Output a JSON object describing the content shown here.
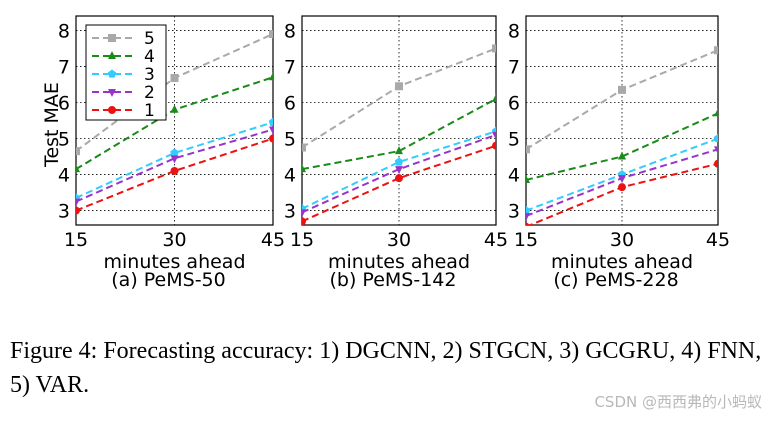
{
  "chart_data": [
    {
      "type": "line",
      "title": "(a) PeMS-50",
      "xlabel": "minutes ahead",
      "ylabel": "Test MAE",
      "x": [
        15,
        30,
        45
      ],
      "xticks": [
        "15",
        "30",
        "45"
      ],
      "yticks": [
        "3",
        "4",
        "5",
        "6",
        "7",
        "8"
      ],
      "ylim": [
        2.6,
        8.4
      ],
      "grid": true,
      "legend_position": "top-left",
      "series": [
        {
          "name": "5",
          "values": [
            4.65,
            6.68,
            7.9
          ]
        },
        {
          "name": "4",
          "values": [
            4.15,
            5.8,
            6.7
          ]
        },
        {
          "name": "3",
          "values": [
            3.35,
            4.6,
            5.45
          ]
        },
        {
          "name": "2",
          "values": [
            3.25,
            4.45,
            5.25
          ]
        },
        {
          "name": "1",
          "values": [
            3.0,
            4.1,
            5.0
          ]
        }
      ]
    },
    {
      "type": "line",
      "title": "(b) PeMS-142",
      "xlabel": "minutes ahead",
      "ylabel": "",
      "x": [
        15,
        30,
        45
      ],
      "xticks": [
        "15",
        "30",
        "45"
      ],
      "yticks": [
        "3",
        "4",
        "5",
        "6",
        "7",
        "8"
      ],
      "ylim": [
        2.6,
        8.4
      ],
      "grid": true,
      "series": [
        {
          "name": "5",
          "values": [
            4.75,
            6.45,
            7.5
          ]
        },
        {
          "name": "4",
          "values": [
            4.15,
            4.65,
            6.1
          ]
        },
        {
          "name": "3",
          "values": [
            3.05,
            4.35,
            5.2
          ]
        },
        {
          "name": "2",
          "values": [
            2.95,
            4.15,
            5.1
          ]
        },
        {
          "name": "1",
          "values": [
            2.7,
            3.9,
            4.8
          ]
        }
      ]
    },
    {
      "type": "line",
      "title": "(c) PeMS-228",
      "xlabel": "minutes ahead",
      "ylabel": "",
      "x": [
        15,
        30,
        45
      ],
      "xticks": [
        "15",
        "30",
        "45"
      ],
      "yticks": [
        "3",
        "4",
        "5",
        "6",
        "7",
        "8"
      ],
      "ylim": [
        2.6,
        8.4
      ],
      "grid": true,
      "series": [
        {
          "name": "5",
          "values": [
            4.7,
            6.35,
            7.45
          ]
        },
        {
          "name": "4",
          "values": [
            3.85,
            4.5,
            5.7
          ]
        },
        {
          "name": "3",
          "values": [
            3.0,
            4.0,
            5.0
          ]
        },
        {
          "name": "2",
          "values": [
            2.85,
            3.9,
            4.7
          ]
        },
        {
          "name": "1",
          "values": [
            2.55,
            3.65,
            4.3
          ]
        }
      ]
    }
  ],
  "legend": [
    {
      "label": "5",
      "marker": "square",
      "color": "#a9a9a9"
    },
    {
      "label": "4",
      "marker": "triangle-up",
      "color": "#1a8a1a"
    },
    {
      "label": "3",
      "marker": "pentagon",
      "color": "#33ccff"
    },
    {
      "label": "2",
      "marker": "triangle-down",
      "color": "#9933cc"
    },
    {
      "label": "1",
      "marker": "circle",
      "color": "#ee1111"
    }
  ],
  "caption": "Figure 4:  Forecasting accuracy: 1) DGCNN, 2) STGCN, 3) GCGRU, 4) FNN, 5) VAR.",
  "watermark": "CSDN @西西弗的小蚂蚁"
}
